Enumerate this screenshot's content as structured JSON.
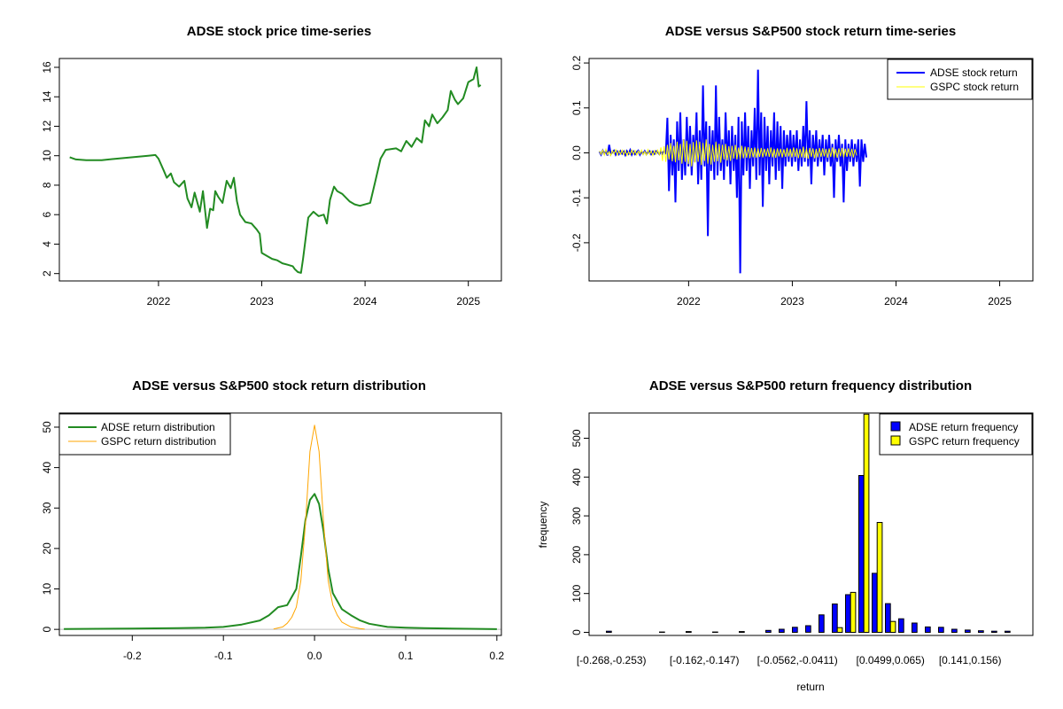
{
  "colors": {
    "adse_price": "#228B22",
    "adse_return": "#0000FF",
    "gspc_return": "#FFFF00",
    "adse_density": "#228B22",
    "gspc_density": "#FFA500",
    "adse_bar": "#0000FF",
    "gspc_bar": "#FFFF00",
    "axis": "#000000",
    "zero_line": "#BEBEBE"
  },
  "chart_data": [
    {
      "id": "price",
      "type": "line",
      "title": "ADSE stock price time-series",
      "xlabel": "",
      "ylabel": "",
      "xlim": [
        2021.04,
        2025.32
      ],
      "ylim": [
        1.5,
        16.6
      ],
      "x_ticks": [
        2022,
        2023,
        2024,
        2025
      ],
      "x_tick_labels": [
        "2022",
        "2023",
        "2024",
        "2025"
      ],
      "y_ticks": [
        2,
        4,
        6,
        8,
        10,
        12,
        14,
        16
      ],
      "y_tick_labels": [
        "2",
        "4",
        "6",
        "8",
        "10",
        "12",
        "14",
        "16"
      ],
      "series": [
        {
          "name": "ADSE stock price",
          "x": [
            2021.14,
            2021.2,
            2021.3,
            2021.45,
            2021.6,
            2021.75,
            2021.9,
            2021.97,
            2022.0,
            2022.05,
            2022.08,
            2022.12,
            2022.15,
            2022.2,
            2022.25,
            2022.28,
            2022.32,
            2022.35,
            2022.4,
            2022.43,
            2022.47,
            2022.5,
            2022.53,
            2022.55,
            2022.58,
            2022.62,
            2022.66,
            2022.7,
            2022.73,
            2022.76,
            2022.79,
            2022.84,
            2022.9,
            2022.95,
            2022.98,
            2023.0,
            2023.05,
            2023.1,
            2023.15,
            2023.2,
            2023.25,
            2023.3,
            2023.32,
            2023.35,
            2023.38,
            2023.4,
            2023.45,
            2023.5,
            2023.55,
            2023.6,
            2023.63,
            2023.66,
            2023.7,
            2023.73,
            2023.78,
            2023.85,
            2023.9,
            2023.95,
            2024.05,
            2024.1,
            2024.15,
            2024.2,
            2024.3,
            2024.35,
            2024.4,
            2024.45,
            2024.5,
            2024.55,
            2024.58,
            2024.62,
            2024.65,
            2024.7,
            2024.75,
            2024.8,
            2024.83,
            2024.87,
            2024.9,
            2024.95,
            2025.0,
            2025.05,
            2025.08,
            2025.1,
            2025.12
          ],
          "y": [
            9.9,
            9.75,
            9.7,
            9.7,
            9.8,
            9.9,
            10.0,
            10.05,
            9.8,
            9.0,
            8.5,
            8.8,
            8.2,
            7.9,
            8.3,
            7.1,
            6.5,
            7.5,
            6.2,
            7.6,
            5.1,
            6.4,
            6.3,
            7.6,
            7.2,
            6.8,
            8.3,
            7.8,
            8.5,
            6.9,
            6.0,
            5.5,
            5.4,
            5.0,
            4.7,
            3.4,
            3.2,
            3.0,
            2.9,
            2.7,
            2.6,
            2.5,
            2.3,
            2.1,
            2.05,
            3.0,
            5.8,
            6.2,
            5.9,
            6.0,
            5.4,
            7.0,
            7.9,
            7.6,
            7.4,
            6.9,
            6.7,
            6.6,
            6.8,
            8.3,
            9.8,
            10.4,
            10.5,
            10.3,
            11.0,
            10.6,
            11.2,
            10.9,
            12.4,
            12.0,
            12.8,
            12.2,
            12.6,
            13.1,
            14.4,
            13.8,
            13.5,
            13.9,
            15.0,
            15.2,
            16.0,
            14.7,
            14.8
          ]
        }
      ]
    },
    {
      "id": "returns",
      "type": "line",
      "title": "ADSE versus S&P500 stock return time-series",
      "xlabel": "",
      "ylabel": "",
      "xlim": [
        2021.04,
        2025.32
      ],
      "ylim": [
        -0.285,
        0.21
      ],
      "x_ticks": [
        2022,
        2023,
        2024,
        2025
      ],
      "x_tick_labels": [
        "2022",
        "2023",
        "2024",
        "2025"
      ],
      "y_ticks": [
        -0.2,
        -0.1,
        0.0,
        0.1,
        0.2
      ],
      "y_tick_labels": [
        "-0.2",
        "-0.1",
        "0.0",
        "0.1",
        "0.2"
      ],
      "legend": {
        "position": "top-right",
        "entries": [
          "ADSE stock return",
          "GSPC stock return"
        ]
      },
      "series": [
        {
          "name": "ADSE stock return",
          "x_start": 2021.14,
          "x_step": 0.0156,
          "values": [
            0.003,
            -0.004,
            0.005,
            -0.002,
            0.004,
            -0.006,
            0.018,
            -0.003,
            0.002,
            0.005,
            -0.004,
            0.003,
            -0.003,
            0.004,
            -0.002,
            0.003,
            -0.005,
            0.004,
            -0.002,
            0.006,
            -0.004,
            0.003,
            -0.003,
            0.002,
            0.005,
            -0.004,
            0.003,
            -0.002,
            0.004,
            -0.003,
            0.002,
            0.004,
            -0.003,
            0.003,
            -0.002,
            0.004,
            0.002,
            -0.003,
            0.003,
            -0.002,
            0.005,
            -0.003,
            0.078,
            -0.085,
            0.04,
            -0.05,
            0.03,
            -0.11,
            0.07,
            -0.04,
            0.09,
            -0.06,
            0.03,
            -0.05,
            0.08,
            -0.03,
            0.06,
            -0.05,
            0.04,
            -0.02,
            0.09,
            -0.07,
            0.05,
            -0.06,
            0.15,
            -0.03,
            0.07,
            -0.185,
            0.06,
            -0.04,
            0.05,
            -0.06,
            0.15,
            -0.05,
            0.08,
            -0.04,
            0.03,
            -0.06,
            0.09,
            -0.03,
            0.05,
            -0.07,
            0.06,
            -0.04,
            0.04,
            -0.1,
            0.08,
            -0.268,
            0.07,
            -0.05,
            0.09,
            -0.04,
            0.06,
            -0.08,
            0.05,
            -0.03,
            0.1,
            -0.06,
            0.185,
            -0.05,
            0.09,
            -0.12,
            0.08,
            -0.04,
            0.06,
            -0.07,
            0.05,
            -0.03,
            0.09,
            -0.06,
            0.07,
            -0.04,
            0.06,
            -0.08,
            0.05,
            -0.03,
            0.04,
            -0.02,
            0.05,
            -0.03,
            0.04,
            -0.02,
            0.05,
            -0.04,
            0.03,
            -0.03,
            0.06,
            -0.02,
            0.115,
            -0.03,
            0.05,
            -0.07,
            0.04,
            -0.02,
            0.05,
            -0.03,
            0.03,
            -0.02,
            0.04,
            -0.05,
            0.03,
            -0.02,
            0.04,
            -0.03,
            0.02,
            -0.1,
            0.03,
            -0.02,
            0.04,
            -0.03,
            0.02,
            -0.11,
            0.03,
            -0.04,
            0.02,
            -0.02,
            0.03,
            -0.03,
            0.02,
            -0.02,
            0.03,
            -0.075,
            0.03,
            -0.02,
            0.02,
            -0.01
          ]
        },
        {
          "name": "GSPC stock return",
          "x_start": 2021.14,
          "x_step": 0.0156,
          "values": [
            0.004,
            -0.003,
            0.006,
            -0.005,
            0.008,
            -0.004,
            0.003,
            -0.006,
            0.005,
            -0.002,
            0.007,
            -0.005,
            0.004,
            -0.003,
            0.006,
            -0.004,
            0.005,
            -0.006,
            0.003,
            -0.004,
            0.006,
            -0.003,
            0.005,
            -0.005,
            0.004,
            -0.002,
            0.006,
            -0.004,
            0.003,
            -0.005,
            0.007,
            -0.003,
            0.004,
            -0.006,
            0.005,
            -0.003,
            0.006,
            -0.004,
            0.012,
            -0.018,
            0.015,
            -0.02,
            0.018,
            -0.015,
            0.022,
            -0.019,
            0.016,
            -0.021,
            0.025,
            -0.017,
            0.02,
            -0.024,
            0.03,
            -0.02,
            0.027,
            -0.025,
            0.02,
            -0.03,
            0.024,
            -0.022,
            0.028,
            -0.02,
            0.025,
            -0.027,
            0.022,
            -0.018,
            0.03,
            -0.024,
            0.02,
            -0.026,
            0.018,
            -0.02,
            0.025,
            -0.019,
            0.02,
            -0.022,
            0.018,
            -0.015,
            0.02,
            -0.017,
            0.015,
            -0.018,
            0.016,
            -0.013,
            0.018,
            -0.015,
            0.012,
            -0.014,
            0.016,
            -0.012,
            0.014,
            -0.011,
            0.013,
            -0.012,
            0.011,
            -0.01,
            0.012,
            -0.011,
            0.01,
            -0.009,
            0.011,
            -0.01,
            0.009,
            -0.008,
            0.01,
            -0.009,
            0.012,
            -0.01,
            0.009,
            -0.011,
            0.01,
            -0.008,
            0.009,
            -0.01,
            0.008,
            -0.009,
            0.011,
            -0.008,
            0.009,
            -0.01,
            0.012,
            -0.009,
            0.01,
            -0.012,
            0.009,
            -0.01,
            0.014,
            -0.011,
            0.01,
            -0.013,
            0.011,
            -0.009,
            0.01,
            -0.012,
            0.009,
            -0.01,
            0.011,
            -0.009,
            0.01,
            -0.008,
            0.009,
            -0.011,
            0.01,
            -0.009,
            0.012,
            -0.01,
            0.009,
            -0.011,
            0.01,
            -0.008,
            0.011,
            -0.01,
            0.009,
            -0.009,
            0.01,
            -0.008,
            0.009,
            -0.01,
            0.008,
            -0.006
          ]
        }
      ]
    },
    {
      "id": "density",
      "type": "line",
      "title": "ADSE versus S&P500 stock return distribution",
      "xlabel": "",
      "ylabel": "",
      "xlim": [
        -0.28,
        0.205
      ],
      "ylim": [
        -1.5,
        53.5
      ],
      "x_ticks": [
        -0.2,
        -0.1,
        0.0,
        0.1,
        0.2
      ],
      "x_tick_labels": [
        "-0.2",
        "-0.1",
        "0.0",
        "0.1",
        "0.2"
      ],
      "y_ticks": [
        0,
        10,
        20,
        30,
        40,
        50
      ],
      "y_tick_labels": [
        "0",
        "10",
        "20",
        "30",
        "40",
        "50"
      ],
      "legend": {
        "position": "top-left",
        "entries": [
          "ADSE return distribution",
          "GSPC return distribution"
        ]
      },
      "series": [
        {
          "name": "ADSE return distribution",
          "x": [
            -0.275,
            -0.2,
            -0.15,
            -0.12,
            -0.1,
            -0.08,
            -0.06,
            -0.05,
            -0.04,
            -0.03,
            -0.02,
            -0.015,
            -0.01,
            -0.005,
            0.0,
            0.005,
            0.01,
            0.015,
            0.02,
            0.025,
            0.03,
            0.04,
            0.05,
            0.06,
            0.08,
            0.1,
            0.12,
            0.15,
            0.19,
            0.2
          ],
          "y": [
            0.1,
            0.2,
            0.3,
            0.4,
            0.6,
            1.2,
            2.2,
            3.5,
            5.5,
            6.0,
            10.0,
            18.0,
            27.0,
            32.0,
            33.5,
            31.0,
            24.0,
            15.0,
            9.0,
            7.0,
            5.0,
            3.5,
            2.2,
            1.4,
            0.6,
            0.4,
            0.3,
            0.2,
            0.1,
            0.05
          ]
        },
        {
          "name": "GSPC return distribution",
          "x": [
            -0.045,
            -0.035,
            -0.03,
            -0.025,
            -0.02,
            -0.015,
            -0.01,
            -0.005,
            0.0,
            0.005,
            0.01,
            0.015,
            0.02,
            0.025,
            0.03,
            0.04,
            0.05,
            0.055
          ],
          "y": [
            0.1,
            0.6,
            1.5,
            3.0,
            5.5,
            12.0,
            26.0,
            44.0,
            50.5,
            44.0,
            26.0,
            12.0,
            6.0,
            3.5,
            1.8,
            0.6,
            0.2,
            0.05
          ]
        }
      ]
    },
    {
      "id": "histogram",
      "type": "bar",
      "title": "ADSE versus S&P500 return frequency distribution",
      "xlabel": "return",
      "ylabel": "frequency",
      "ylim": [
        -8,
        565
      ],
      "y_ticks": [
        0,
        100,
        200,
        300,
        400,
        500
      ],
      "y_tick_labels": [
        "0",
        "100",
        "200",
        "300",
        "400",
        "500"
      ],
      "x_tick_labels": [
        "[-0.268,-0.253)",
        "[-0.162,-0.147)",
        "[-0.0562,-0.0411)",
        "[0.0499,0.065)",
        "[0.141,0.156)"
      ],
      "x_tick_category_index": [
        0,
        7,
        14,
        21,
        27
      ],
      "bin_count": 31,
      "legend": {
        "position": "top-right",
        "entries": [
          "ADSE return frequency",
          "GSPC return frequency"
        ]
      },
      "series": [
        {
          "name": "ADSE return frequency",
          "values": [
            3,
            0,
            0,
            0,
            1,
            0,
            2,
            0,
            1,
            0,
            2,
            0,
            5,
            8,
            13,
            17,
            45,
            73,
            97,
            404,
            152,
            74,
            35,
            24,
            14,
            13,
            8,
            6,
            4,
            3,
            3
          ]
        },
        {
          "name": "GSPC return frequency",
          "values": [
            0,
            0,
            0,
            0,
            0,
            0,
            0,
            0,
            0,
            0,
            0,
            0,
            0,
            0,
            0,
            0,
            0,
            12,
            103,
            562,
            283,
            28,
            0,
            0,
            0,
            0,
            0,
            0,
            0,
            0,
            0
          ]
        }
      ]
    }
  ]
}
